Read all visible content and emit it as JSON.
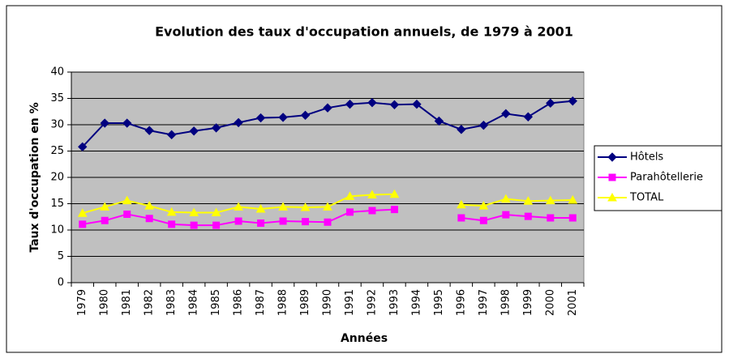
{
  "chart_data": {
    "type": "line",
    "title": "Evolution des taux d'occupation annuels, de 1979 à 2001",
    "x_label": "Années",
    "y_label": "Taux d'occupation en %",
    "categories": [
      "1979",
      "1980",
      "1981",
      "1982",
      "1983",
      "1984",
      "1985",
      "1986",
      "1987",
      "1988",
      "1989",
      "1990",
      "1991",
      "1992",
      "1993",
      "1994",
      "1995",
      "1996",
      "1997",
      "1998",
      "1999",
      "2000",
      "2001"
    ],
    "series": [
      {
        "name": "Hôtels",
        "color": "#000080",
        "marker": "diamond",
        "values": [
          25.8,
          30.3,
          30.3,
          28.9,
          28.1,
          28.8,
          29.4,
          30.4,
          31.3,
          31.4,
          31.8,
          33.2,
          33.9,
          34.2,
          33.8,
          33.9,
          30.7,
          29.1,
          29.9,
          32.1,
          31.5,
          34.1,
          34.5
        ]
      },
      {
        "name": "Parahôtellerie",
        "color": "#FF00FF",
        "marker": "square",
        "values": [
          11.1,
          11.8,
          13.0,
          12.2,
          11.1,
          10.9,
          10.9,
          11.7,
          11.3,
          11.7,
          11.6,
          11.5,
          13.4,
          13.7,
          13.9,
          null,
          null,
          12.3,
          11.8,
          12.9,
          12.6,
          12.3,
          12.3
        ]
      },
      {
        "name": "TOTAL",
        "color": "#FFFF00",
        "marker": "triangle",
        "values": [
          13.2,
          14.4,
          15.6,
          14.6,
          13.4,
          13.3,
          13.3,
          14.4,
          14.0,
          14.4,
          14.3,
          14.4,
          16.4,
          16.7,
          16.8,
          null,
          null,
          14.8,
          14.6,
          15.9,
          15.5,
          15.6,
          15.7
        ]
      }
    ],
    "ylim": [
      0,
      40
    ],
    "yticks": [
      0,
      5,
      10,
      15,
      20,
      25,
      30,
      35,
      40
    ],
    "grid": true,
    "legend": "right",
    "plot_background": "#C0C0C0"
  }
}
